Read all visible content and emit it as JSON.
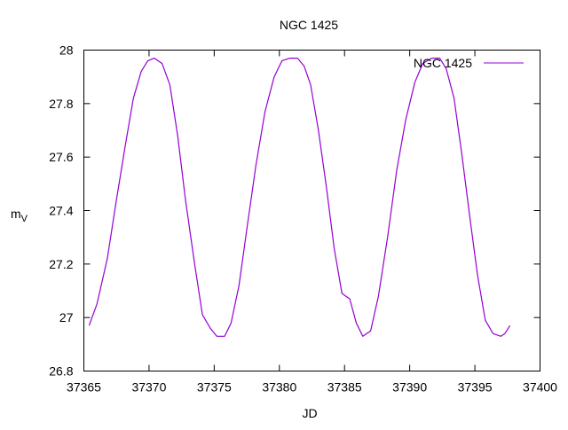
{
  "chart_data": {
    "type": "line",
    "title": "NGC 1425",
    "xlabel": "JD",
    "ylabel": "m",
    "ylabel_subscript": "V",
    "xlim": [
      37365,
      37400
    ],
    "ylim": [
      26.8,
      28.0
    ],
    "xticks": [
      37365,
      37370,
      37375,
      37380,
      37385,
      37390,
      37395,
      37400
    ],
    "yticks": [
      26.8,
      27.0,
      27.2,
      27.4,
      27.6,
      27.8,
      28.0
    ],
    "xtick_labels": [
      "37365",
      "37370",
      "37375",
      "37380",
      "37385",
      "37390",
      "37395",
      "37400"
    ],
    "ytick_labels": [
      "26.8",
      "27",
      "27.2",
      "27.4",
      "27.6",
      "27.8",
      "28"
    ],
    "grid": false,
    "legend_position": "top-right",
    "series": [
      {
        "name": "NGC 1425",
        "color": "#9400d3",
        "x": [
          37365.4,
          37366.0,
          37366.8,
          37367.5,
          37368.2,
          37368.8,
          37369.4,
          37369.9,
          37370.4,
          37371.0,
          37371.6,
          37372.2,
          37372.8,
          37373.5,
          37374.1,
          37374.7,
          37375.2,
          37375.8,
          37376.3,
          37376.9,
          37377.5,
          37378.2,
          37378.9,
          37379.6,
          37380.2,
          37380.8,
          37381.4,
          37381.9,
          37382.4,
          37383.0,
          37383.6,
          37384.2,
          37384.8,
          37385.4,
          37385.9,
          37386.4,
          37387.0,
          37387.6,
          37388.3,
          37389.0,
          37389.7,
          37390.4,
          37391.0,
          37391.7,
          37392.3,
          37392.8,
          37393.4,
          37394.0,
          37394.6,
          37395.2,
          37395.8,
          37396.4,
          37397.0,
          37397.3,
          37397.7
        ],
        "y": [
          26.97,
          27.05,
          27.22,
          27.44,
          27.65,
          27.82,
          27.92,
          27.96,
          27.97,
          27.95,
          27.87,
          27.68,
          27.44,
          27.2,
          27.01,
          26.96,
          26.93,
          26.93,
          26.98,
          27.12,
          27.33,
          27.57,
          27.77,
          27.9,
          27.96,
          27.97,
          27.97,
          27.94,
          27.87,
          27.7,
          27.49,
          27.26,
          27.09,
          27.07,
          26.98,
          26.93,
          26.95,
          27.08,
          27.3,
          27.55,
          27.74,
          27.88,
          27.95,
          27.97,
          27.97,
          27.93,
          27.82,
          27.61,
          27.38,
          27.16,
          26.99,
          26.94,
          26.93,
          26.94,
          26.97
        ]
      }
    ]
  }
}
